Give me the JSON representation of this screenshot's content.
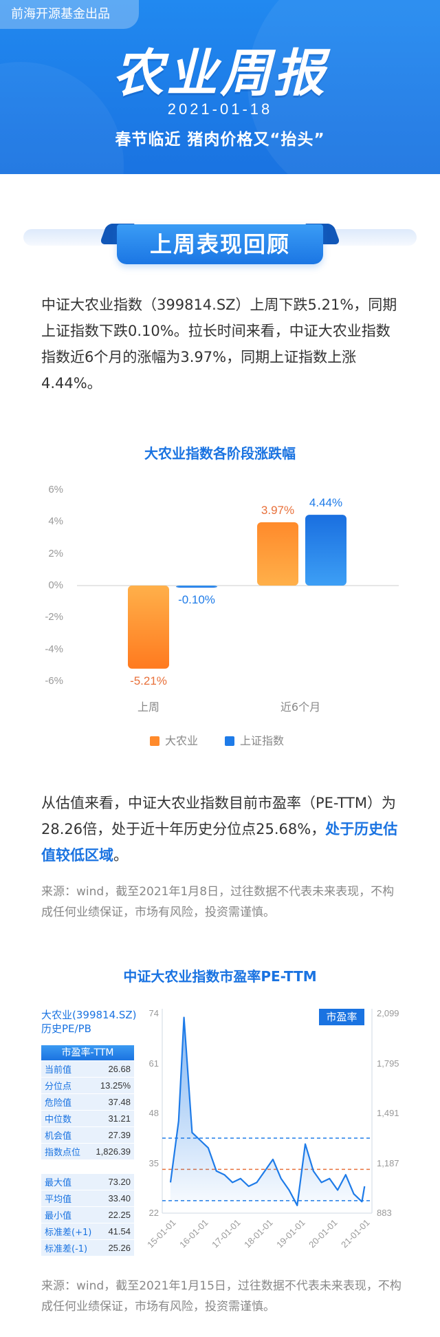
{
  "header": {
    "badge": "前海开源基金出品",
    "title": "农业周报",
    "date": "2021-01-18",
    "subtitle": "春节临近   猪肉价格又“抬头”"
  },
  "section1": {
    "title": "上周表现回顾"
  },
  "para1": "中证大农业指数（399814.SZ）上周下跌5.21%，同期上证指数下跌0.10%。拉长时间来看，中证大农业指数指数近6个月的涨幅为3.97%，同期上证指数上涨4.44%。",
  "chart_data": [
    {
      "type": "bar",
      "title": "大农业指数各阶段涨跌幅",
      "categories": [
        "上周",
        "近6个月"
      ],
      "series": [
        {
          "name": "大农业",
          "values": [
            -5.21,
            3.97
          ],
          "labels": [
            "-5.21%",
            "3.97%"
          ],
          "color": "#ff8a2b"
        },
        {
          "name": "上证指数",
          "values": [
            -0.1,
            4.44
          ],
          "labels": [
            "-0.10%",
            "4.44%"
          ],
          "color": "#1e7be8"
        }
      ],
      "ylim": [
        -6,
        6
      ],
      "yticks": [
        "6%",
        "4%",
        "2%",
        "0%",
        "-2%",
        "-4%",
        "-6%"
      ],
      "grid": false,
      "legend": "bottom"
    },
    {
      "type": "line",
      "title": "中证大农业指数市盈率PE-TTM",
      "series": [
        {
          "name": "市盈率"
        }
      ],
      "ylim_left": [
        22,
        74
      ],
      "yticks_left": [
        "74",
        "61",
        "48",
        "35",
        "22"
      ],
      "ylim_right": [
        883,
        2099
      ],
      "yticks_right": [
        "2,099",
        "1,795",
        "1,491",
        "1,187",
        "883"
      ],
      "xticks": [
        "15-01-01",
        "16-01-01",
        "17-01-01",
        "18-01-01",
        "19-01-01",
        "20-01-01",
        "21-01-01"
      ],
      "x": [
        "2015-01",
        "2015-04",
        "2015-06",
        "2015-09",
        "2015-12",
        "2016-03",
        "2016-06",
        "2016-09",
        "2016-12",
        "2017-03",
        "2017-06",
        "2017-09",
        "2017-12",
        "2018-03",
        "2018-06",
        "2018-09",
        "2018-12",
        "2019-03",
        "2019-06",
        "2019-09",
        "2019-12",
        "2020-03",
        "2020-06",
        "2020-09",
        "2020-12",
        "2021-01"
      ],
      "values": [
        30,
        46,
        73,
        43,
        41,
        39,
        33,
        32,
        30,
        31,
        29,
        30,
        33,
        36,
        31,
        28,
        24,
        40,
        33,
        30,
        31,
        28,
        32,
        27,
        25,
        29
      ],
      "reference_lines": [
        {
          "label": "标准差(+1)",
          "value": 41.54,
          "color": "#1e7be8",
          "style": "dashed"
        },
        {
          "label": "平均值",
          "value": 33.4,
          "color": "#e8703a",
          "style": "dashed"
        },
        {
          "label": "标准差(-1)",
          "value": 25.26,
          "color": "#1e7be8",
          "style": "dashed"
        }
      ]
    }
  ],
  "legend": {
    "a": "大农业",
    "b": "上证指数"
  },
  "para2": {
    "text": "从估值来看，中证大农业指数目前市盈率（PE-TTM）为28.26倍，处于近十年历史分位点25.68%，",
    "highlight": "处于历史估值较低区域",
    "end": "。"
  },
  "source1": "来源：wind，截至2021年1月8日，过往数据不代表未来表现，不构成任何业绩保证，市场有风险，投资需谨慎。",
  "pe_panel": {
    "name": "大农业(399814.SZ)",
    "sub": "历史PE/PB",
    "table_head": "市盈率-TTM",
    "legend": "市盈率",
    "rows1": [
      {
        "k": "当前值",
        "v": "26.68"
      },
      {
        "k": "分位点",
        "v": "13.25%"
      },
      {
        "k": "危险值",
        "v": "37.48"
      },
      {
        "k": "中位数",
        "v": "31.21"
      },
      {
        "k": "机会值",
        "v": "27.39"
      },
      {
        "k": "指数点位",
        "v": "1,826.39"
      }
    ],
    "rows2": [
      {
        "k": "最大值",
        "v": "73.20"
      },
      {
        "k": "平均值",
        "v": "33.40"
      },
      {
        "k": "最小值",
        "v": "22.25"
      },
      {
        "k": "标准差(+1)",
        "v": "41.54"
      },
      {
        "k": "标准差(-1)",
        "v": "25.26"
      }
    ]
  },
  "source2": "来源：wind，截至2021年1月15日，过往数据不代表未来表现，不构成任何业绩保证，市场有风险，投资需谨慎。"
}
